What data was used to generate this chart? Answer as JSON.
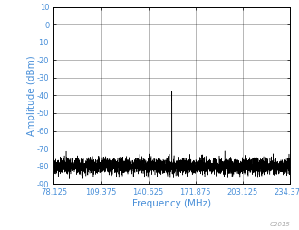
{
  "xlabel": "Frequency (MHz)",
  "ylabel": "Amplitude (dBm)",
  "xlim": [
    78.125,
    234.375
  ],
  "ylim": [
    -90,
    10
  ],
  "xticks": [
    78.125,
    109.375,
    140.625,
    171.875,
    203.125,
    234.375
  ],
  "yticks": [
    -90,
    -80,
    -70,
    -60,
    -50,
    -40,
    -30,
    -20,
    -10,
    0,
    10
  ],
  "noise_floor": -80,
  "noise_std": 2.2,
  "main_spike_freq": 156.25,
  "main_spike_amp": -43,
  "secondary_spike_freq": 93.75,
  "secondary_spike_amp": -74,
  "line_color": "#000000",
  "background_color": "#ffffff",
  "grid_color": "#000000",
  "axis_label_color": "#f5a623",
  "tick_label_color": "#4a90d9",
  "copyright_text": "C2015",
  "copyright_color": "#aaaaaa",
  "tick_label_fontsize": 6,
  "axis_label_fontsize": 7.5,
  "copyright_fontsize": 5,
  "seed": 42
}
